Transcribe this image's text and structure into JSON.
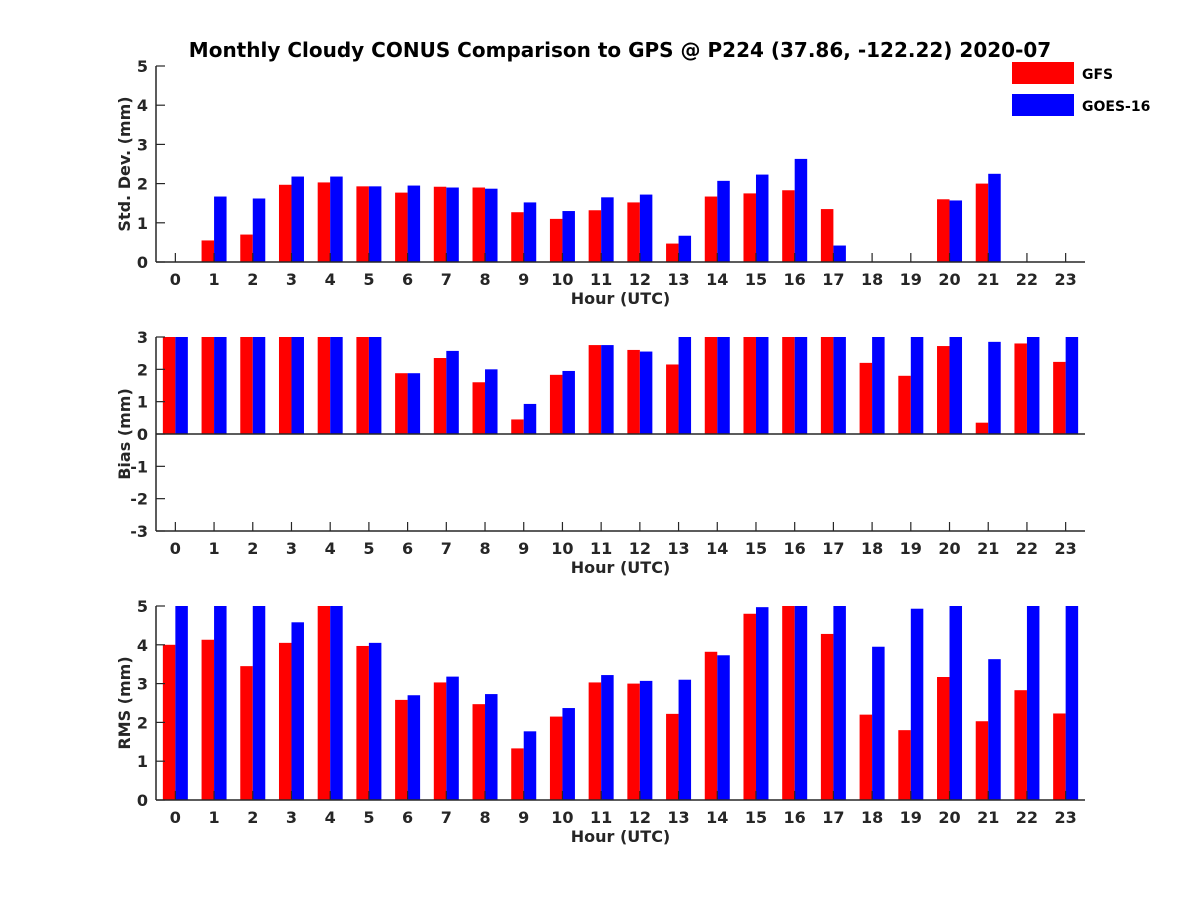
{
  "colors": {
    "gfs": "#ff0000",
    "goes": "#0000ff",
    "axis": "#262626"
  },
  "chart_data": {
    "title": "Monthly Cloudy CONUS Comparison to GPS @ P224 (37.86, -122.22) 2020-07",
    "legend": {
      "placement": "top-right",
      "entries": [
        "GFS",
        "GOES-16"
      ]
    },
    "series_names": [
      "GFS",
      "GOES-16"
    ],
    "panels": [
      {
        "type": "bar",
        "ylabel": "Std. Dev. (mm)",
        "xlabel": "Hour (UTC)",
        "ylim": [
          0,
          5
        ],
        "yticks": [
          "0",
          "1",
          "2",
          "3",
          "4",
          "5"
        ],
        "categories": [
          "0",
          "1",
          "2",
          "3",
          "4",
          "5",
          "6",
          "7",
          "8",
          "9",
          "10",
          "11",
          "12",
          "13",
          "14",
          "15",
          "16",
          "17",
          "18",
          "19",
          "20",
          "21",
          "22",
          "23"
        ],
        "series": [
          {
            "name": "GFS",
            "values": [
              null,
              0.55,
              0.7,
              1.97,
              2.03,
              1.93,
              1.77,
              1.92,
              1.9,
              1.27,
              1.1,
              1.32,
              1.52,
              0.47,
              1.67,
              1.75,
              1.83,
              1.35,
              null,
              null,
              1.6,
              2.0,
              null,
              null
            ]
          },
          {
            "name": "GOES-16",
            "values": [
              null,
              1.67,
              1.62,
              2.18,
              2.18,
              1.93,
              1.95,
              1.9,
              1.87,
              1.52,
              1.3,
              1.65,
              1.72,
              0.67,
              2.07,
              2.23,
              2.63,
              0.42,
              null,
              null,
              1.57,
              2.25,
              null,
              null
            ]
          }
        ]
      },
      {
        "type": "bar",
        "ylabel": "Bias (mm)",
        "xlabel": "Hour (UTC)",
        "ylim": [
          -3,
          3
        ],
        "yticks": [
          "-3",
          "-2",
          "-1",
          "0",
          "1",
          "2",
          "3"
        ],
        "categories": [
          "0",
          "1",
          "2",
          "3",
          "4",
          "5",
          "6",
          "7",
          "8",
          "9",
          "10",
          "11",
          "12",
          "13",
          "14",
          "15",
          "16",
          "17",
          "18",
          "19",
          "20",
          "21",
          "22",
          "23"
        ],
        "series": [
          {
            "name": "GFS",
            "values": [
              3,
              3,
              3,
              3,
              3,
              3,
              1.88,
              2.35,
              1.6,
              0.45,
              1.83,
              2.75,
              2.6,
              2.15,
              3,
              3,
              3,
              3,
              2.2,
              1.8,
              2.72,
              0.35,
              2.8,
              2.23
            ]
          },
          {
            "name": "GOES-16",
            "values": [
              3,
              3,
              3,
              3,
              3,
              3,
              1.88,
              2.57,
              2.0,
              0.93,
              1.95,
              2.75,
              2.55,
              3,
              3,
              3,
              3,
              3,
              3,
              3,
              3,
              2.85,
              3,
              3
            ]
          }
        ]
      },
      {
        "type": "bar",
        "ylabel": "RMS (mm)",
        "xlabel": "Hour (UTC)",
        "ylim": [
          0,
          5
        ],
        "yticks": [
          "0",
          "1",
          "2",
          "3",
          "4",
          "5"
        ],
        "categories": [
          "0",
          "1",
          "2",
          "3",
          "4",
          "5",
          "6",
          "7",
          "8",
          "9",
          "10",
          "11",
          "12",
          "13",
          "14",
          "15",
          "16",
          "17",
          "18",
          "19",
          "20",
          "21",
          "22",
          "23"
        ],
        "series": [
          {
            "name": "GFS",
            "values": [
              4.0,
              4.13,
              3.45,
              4.05,
              5,
              3.97,
              2.58,
              3.03,
              2.47,
              1.33,
              2.15,
              3.03,
              3.0,
              2.22,
              3.82,
              4.8,
              5,
              4.28,
              2.2,
              1.8,
              3.17,
              2.03,
              2.83,
              2.23
            ]
          },
          {
            "name": "GOES-16",
            "values": [
              5,
              5,
              5,
              4.58,
              5,
              4.05,
              2.7,
              3.18,
              2.73,
              1.77,
              2.37,
              3.22,
              3.07,
              3.1,
              3.73,
              4.97,
              5,
              5,
              3.95,
              4.93,
              5,
              3.63,
              5,
              5
            ]
          }
        ]
      }
    ]
  }
}
